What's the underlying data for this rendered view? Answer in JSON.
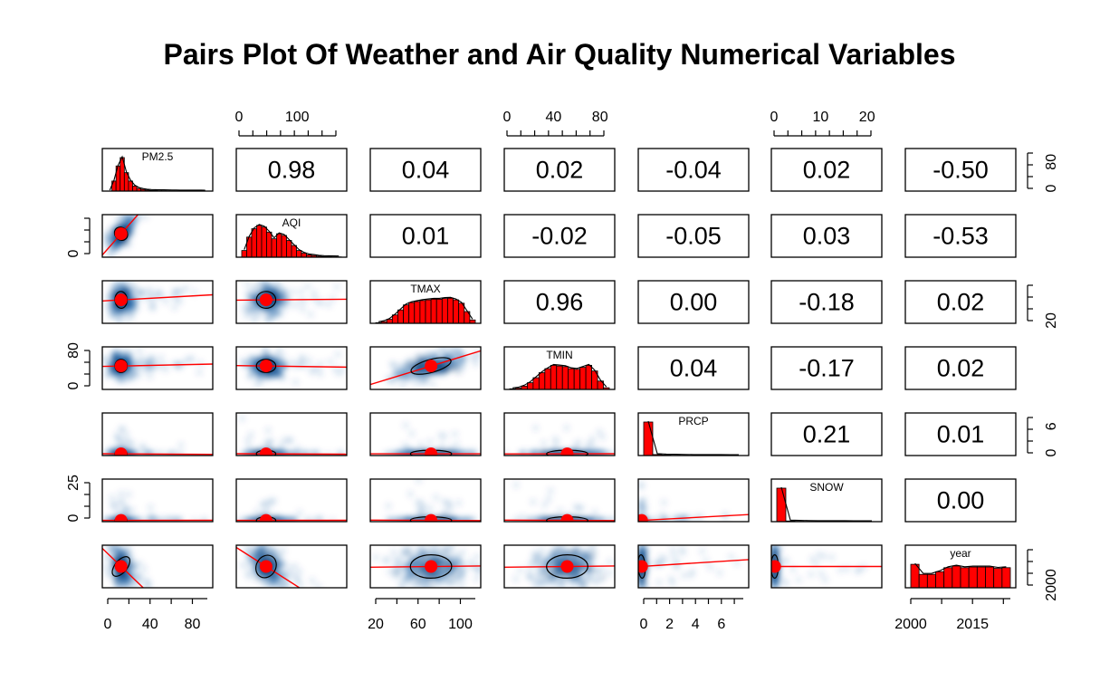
{
  "chart_data": {
    "type": "scatter",
    "title": "Pairs Plot Of Weather and Air Quality Numerical Variables",
    "variables": [
      "PM2.5",
      "AQI",
      "TMAX",
      "TMIN",
      "PRCP",
      "SNOW",
      "year"
    ],
    "correlations": [
      [
        "",
        "0.98",
        "0.04",
        "0.02",
        "-0.04",
        "0.02",
        "-0.50"
      ],
      [
        "",
        "",
        "0.01",
        "-0.02",
        "-0.05",
        "0.03",
        "-0.53"
      ],
      [
        "",
        "",
        "",
        "0.96",
        "0.00",
        "-0.18",
        "0.02"
      ],
      [
        "",
        "",
        "",
        "",
        "0.04",
        "-0.17",
        "0.02"
      ],
      [
        "",
        "",
        "",
        "",
        "",
        "0.21",
        "0.01"
      ],
      [
        "",
        "",
        "",
        "",
        "",
        "",
        "0.00"
      ],
      [
        "",
        "",
        "",
        "",
        "",
        "",
        ""
      ]
    ],
    "axis_ticks": {
      "top": [
        {
          "column": 1,
          "labels": [
            "0",
            "100"
          ]
        },
        {
          "column": 3,
          "labels": [
            "0",
            "40",
            "80"
          ]
        },
        {
          "column": 5,
          "labels": [
            "0",
            "10",
            "20"
          ]
        }
      ],
      "bottom": [
        {
          "column": 0,
          "labels": [
            "0",
            "40",
            "80"
          ]
        },
        {
          "column": 2,
          "labels": [
            "20",
            "60",
            "100"
          ]
        },
        {
          "column": 4,
          "labels": [
            "0",
            "2",
            "4",
            "6"
          ]
        },
        {
          "column": 6,
          "labels": [
            "2000",
            "2015"
          ]
        }
      ],
      "left": [
        {
          "row": 1,
          "labels": [
            "0"
          ]
        },
        {
          "row": 3,
          "labels": [
            "0",
            "80"
          ]
        },
        {
          "row": 5,
          "labels": [
            "0",
            "25"
          ]
        }
      ],
      "right": [
        {
          "row": 0,
          "labels": [
            "0",
            "80"
          ]
        },
        {
          "row": 2,
          "labels": [
            "20"
          ]
        },
        {
          "row": 4,
          "labels": [
            "0",
            "6"
          ]
        },
        {
          "row": 6,
          "labels": [
            "2000"
          ]
        }
      ]
    },
    "histograms": [
      [
        0,
        0.3,
        0.75,
        1.0,
        0.55,
        0.3,
        0.15,
        0.08,
        0.05,
        0.03,
        0.02,
        0.015,
        0.01,
        0.01,
        0.008,
        0.006,
        0.005,
        0.004,
        0.003,
        0.003,
        0.002,
        0.002,
        0.002,
        0.001
      ],
      [
        0.2,
        0.6,
        0.85,
        0.95,
        0.9,
        0.75,
        0.55,
        0.7,
        0.65,
        0.5,
        0.35,
        0.2,
        0.12,
        0.07,
        0.05,
        0.03,
        0.02,
        0.015,
        0.01,
        0.008
      ],
      [
        0.02,
        0.05,
        0.12,
        0.25,
        0.4,
        0.55,
        0.62,
        0.65,
        0.68,
        0.7,
        0.72,
        0.72,
        0.74,
        0.75,
        0.7,
        0.6,
        0.35,
        0.1
      ],
      [
        0.02,
        0.04,
        0.1,
        0.2,
        0.35,
        0.5,
        0.62,
        0.72,
        0.7,
        0.68,
        0.62,
        0.6,
        0.66,
        0.72,
        0.55,
        0.25,
        0.05
      ],
      [
        1.0,
        0.03,
        0.015,
        0.01,
        0.006,
        0.004,
        0.003,
        0.002,
        0.002,
        0.001,
        0.001
      ],
      [
        1.0,
        0.02,
        0.01,
        0.006,
        0.004,
        0.003,
        0.002,
        0.002,
        0.001,
        0.001,
        0.001
      ],
      [
        0.7,
        0.4,
        0.4,
        0.48,
        0.6,
        0.65,
        0.6,
        0.62,
        0.62,
        0.62,
        0.58,
        0.6
      ]
    ],
    "colors": {
      "histogram": "#ff0000",
      "regression_line": "#ff0000",
      "mean_point": "#ff0000",
      "density": "#08519c",
      "ellipse": "#000000"
    }
  }
}
